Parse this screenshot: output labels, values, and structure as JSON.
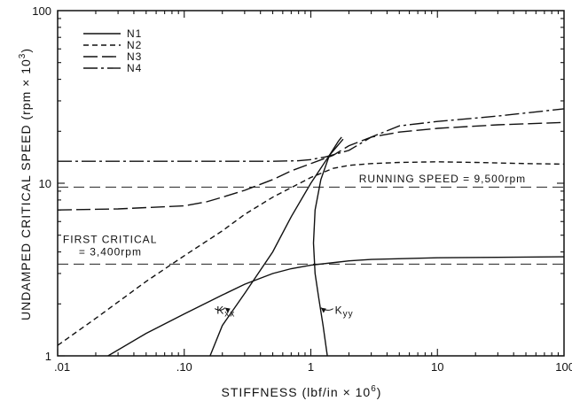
{
  "chart_data": {
    "type": "line",
    "xlabel": "STIFFNESS (lbf/in × 10",
    "xlabel_sup": "6",
    "xlabel_end": ")",
    "ylabel": "UNDAMPED CRITICAL SPEED (rpm × 10",
    "ylabel_sup": "3",
    "ylabel_end": ")",
    "x_scale": "log",
    "y_scale": "log",
    "xlim": [
      0.01,
      100
    ],
    "ylim": [
      1,
      100
    ],
    "x_ticks": [
      {
        "value": 0.01,
        "label": ".01"
      },
      {
        "value": 0.1,
        "label": ".10"
      },
      {
        "value": 1,
        "label": "1"
      },
      {
        "value": 10,
        "label": "10"
      },
      {
        "value": 100,
        "label": "100"
      }
    ],
    "y_ticks": [
      {
        "value": 1,
        "label": "1"
      },
      {
        "value": 10,
        "label": "10"
      },
      {
        "value": 100,
        "label": "100"
      }
    ],
    "grid": false,
    "legend_position": "top-left",
    "series": [
      {
        "name": "N1",
        "style": "solid",
        "dash": "",
        "points": [
          [
            0.025,
            1.0
          ],
          [
            0.05,
            1.35
          ],
          [
            0.1,
            1.75
          ],
          [
            0.2,
            2.25
          ],
          [
            0.3,
            2.6
          ],
          [
            0.5,
            3.0
          ],
          [
            0.7,
            3.2
          ],
          [
            1,
            3.35
          ],
          [
            2,
            3.55
          ],
          [
            3,
            3.62
          ],
          [
            10,
            3.7
          ],
          [
            30,
            3.72
          ],
          [
            100,
            3.75
          ]
        ]
      },
      {
        "name": "N2",
        "style": "dashed",
        "dash": "6 4",
        "points": [
          [
            0.01,
            1.15
          ],
          [
            0.02,
            1.65
          ],
          [
            0.05,
            2.7
          ],
          [
            0.1,
            3.8
          ],
          [
            0.2,
            5.3
          ],
          [
            0.3,
            6.6
          ],
          [
            0.5,
            8.3
          ],
          [
            1,
            10.8
          ],
          [
            1.5,
            12.2
          ],
          [
            2,
            12.7
          ],
          [
            3,
            13.0
          ],
          [
            5,
            13.2
          ],
          [
            10,
            13.3
          ],
          [
            20,
            13.2
          ],
          [
            50,
            13.0
          ],
          [
            100,
            12.9
          ]
        ]
      },
      {
        "name": "N3",
        "style": "long-dash",
        "dash": "16 5",
        "points": [
          [
            0.01,
            7.0
          ],
          [
            0.03,
            7.1
          ],
          [
            0.1,
            7.4
          ],
          [
            0.15,
            7.8
          ],
          [
            0.2,
            8.3
          ],
          [
            0.3,
            9.1
          ],
          [
            0.5,
            10.5
          ],
          [
            0.7,
            11.8
          ],
          [
            1,
            13.0
          ],
          [
            1.5,
            14.5
          ],
          [
            2,
            16.5
          ],
          [
            3,
            18.5
          ],
          [
            5,
            19.8
          ],
          [
            10,
            20.8
          ],
          [
            30,
            21.8
          ],
          [
            100,
            22.5
          ]
        ]
      },
      {
        "name": "N4",
        "style": "dash-dot",
        "dash": "16 4 3 4",
        "points": [
          [
            0.01,
            13.4
          ],
          [
            0.1,
            13.4
          ],
          [
            0.5,
            13.4
          ],
          [
            0.8,
            13.5
          ],
          [
            1,
            13.7
          ],
          [
            1.3,
            14.2
          ],
          [
            2,
            15.5
          ],
          [
            3,
            18.5
          ],
          [
            5,
            21.5
          ],
          [
            10,
            22.8
          ],
          [
            30,
            24.5
          ],
          [
            100,
            27.0
          ]
        ]
      }
    ],
    "stiffness_lines": [
      {
        "label": "K",
        "label_sub": "xx",
        "points": [
          [
            0.16,
            1.0
          ],
          [
            0.2,
            1.5
          ],
          [
            0.3,
            2.3
          ],
          [
            0.5,
            4.0
          ],
          [
            0.7,
            6.4
          ],
          [
            1,
            10.0
          ],
          [
            1.4,
            14.5
          ],
          [
            1.8,
            18.0
          ]
        ],
        "label_at": [
          0.18,
          1.75
        ],
        "arrow_to": [
          0.21,
          1.9
        ]
      },
      {
        "label": "K",
        "label_sub": "yy",
        "points": [
          [
            1.35,
            1.0
          ],
          [
            1.25,
            1.5
          ],
          [
            1.15,
            2.2
          ],
          [
            1.08,
            3.0
          ],
          [
            1.05,
            4.5
          ],
          [
            1.08,
            7.0
          ],
          [
            1.2,
            10.5
          ],
          [
            1.4,
            14.5
          ],
          [
            1.65,
            17.5
          ],
          [
            1.75,
            18.5
          ]
        ],
        "label_at": [
          1.55,
          1.75
        ],
        "arrow_to": [
          1.2,
          1.9
        ]
      }
    ],
    "reference_lines": [
      {
        "y": 9.5,
        "x_from": 0.01,
        "x_to": 100,
        "label": "RUNNING SPEED = 9,500rpm",
        "label_at": [
          2.4,
          10.1
        ]
      },
      {
        "y": 3.4,
        "x_from": 0.01,
        "x_to": 100,
        "label_lines": [
          "FIRST CRITICAL",
          "= 3,400rpm"
        ],
        "label_at": [
          0.011,
          4.5
        ]
      }
    ]
  }
}
